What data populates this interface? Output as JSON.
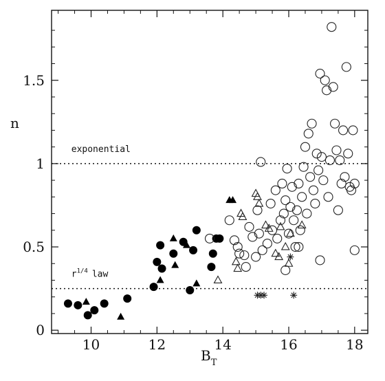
{
  "chart_data": {
    "type": "scatter",
    "title": "",
    "xlabel": "B",
    "xlabel_subscript": "T",
    "ylabel": "n",
    "xlim": [
      8.8,
      18.4
    ],
    "ylim": [
      -0.02,
      1.92
    ],
    "x_ticks": [
      10,
      12,
      14,
      16,
      18
    ],
    "x_tick_labels": [
      "10",
      "12",
      "14",
      "16",
      "18"
    ],
    "y_ticks": [
      0,
      0.5,
      1,
      1.5
    ],
    "y_tick_labels": [
      "0",
      "0.5",
      "1",
      "1.5"
    ],
    "grid": false,
    "legend": "none",
    "reference_lines": [
      {
        "y": 1.0,
        "label": "exponential",
        "label_x": 9.4,
        "label_y": 1.07
      },
      {
        "y": 0.25,
        "label_main": "r",
        "label_sup": "1/4",
        "label_rest": "law",
        "label_x": 9.4,
        "label_y": 0.32
      }
    ],
    "series": [
      {
        "marker": "filled-circle",
        "points": [
          [
            9.3,
            0.16
          ],
          [
            9.6,
            0.15
          ],
          [
            9.9,
            0.09
          ],
          [
            10.1,
            0.12
          ],
          [
            10.4,
            0.16
          ],
          [
            11.1,
            0.19
          ],
          [
            11.9,
            0.26
          ],
          [
            12.0,
            0.41
          ],
          [
            12.1,
            0.51
          ],
          [
            12.15,
            0.37
          ],
          [
            12.5,
            0.46
          ],
          [
            12.8,
            0.53
          ],
          [
            13.0,
            0.24
          ],
          [
            13.1,
            0.48
          ],
          [
            13.2,
            0.6
          ],
          [
            13.65,
            0.38
          ],
          [
            13.7,
            0.46
          ],
          [
            13.8,
            0.55
          ],
          [
            13.9,
            0.55
          ]
        ]
      },
      {
        "marker": "filled-triangle",
        "points": [
          [
            9.85,
            0.17
          ],
          [
            10.9,
            0.08
          ],
          [
            12.1,
            0.3
          ],
          [
            12.5,
            0.55
          ],
          [
            12.55,
            0.39
          ],
          [
            12.9,
            0.51
          ],
          [
            13.2,
            0.28
          ],
          [
            14.2,
            0.78
          ],
          [
            14.3,
            0.78
          ]
        ]
      },
      {
        "marker": "open-triangle",
        "points": [
          [
            13.85,
            0.3
          ],
          [
            14.4,
            0.41
          ],
          [
            14.45,
            0.37
          ],
          [
            14.55,
            0.7
          ],
          [
            14.6,
            0.68
          ],
          [
            15.0,
            0.82
          ],
          [
            15.05,
            0.8
          ],
          [
            15.1,
            0.76
          ],
          [
            15.3,
            0.63
          ],
          [
            15.4,
            0.61
          ],
          [
            15.6,
            0.46
          ],
          [
            15.7,
            0.44
          ],
          [
            15.75,
            0.62
          ],
          [
            15.9,
            0.5
          ],
          [
            16.0,
            0.4
          ],
          [
            16.05,
            0.58
          ],
          [
            16.4,
            0.63
          ]
        ]
      },
      {
        "marker": "open-circle",
        "points": [
          [
            13.6,
            0.55
          ],
          [
            14.2,
            0.66
          ],
          [
            14.35,
            0.54
          ],
          [
            14.45,
            0.5
          ],
          [
            14.5,
            0.46
          ],
          [
            14.65,
            0.45
          ],
          [
            14.7,
            0.38
          ],
          [
            14.8,
            0.62
          ],
          [
            14.9,
            0.56
          ],
          [
            15.0,
            0.44
          ],
          [
            15.05,
            0.72
          ],
          [
            15.1,
            0.58
          ],
          [
            15.15,
            1.01
          ],
          [
            15.2,
            0.48
          ],
          [
            15.35,
            0.52
          ],
          [
            15.45,
            0.76
          ],
          [
            15.5,
            0.6
          ],
          [
            15.6,
            0.84
          ],
          [
            15.65,
            0.55
          ],
          [
            15.75,
            0.66
          ],
          [
            15.8,
            0.88
          ],
          [
            15.85,
            0.7
          ],
          [
            15.9,
            0.78
          ],
          [
            15.95,
            0.97
          ],
          [
            16.0,
            0.58
          ],
          [
            16.05,
            0.74
          ],
          [
            16.1,
            0.86
          ],
          [
            16.15,
            0.66
          ],
          [
            16.2,
            0.5
          ],
          [
            16.25,
            0.72
          ],
          [
            16.3,
            0.88
          ],
          [
            16.35,
            0.6
          ],
          [
            16.4,
            0.8
          ],
          [
            16.45,
            0.98
          ],
          [
            16.5,
            1.1
          ],
          [
            16.55,
            0.7
          ],
          [
            16.6,
            1.18
          ],
          [
            16.65,
            0.92
          ],
          [
            16.7,
            1.24
          ],
          [
            16.75,
            0.84
          ],
          [
            16.8,
            0.76
          ],
          [
            16.85,
            1.06
          ],
          [
            16.9,
            0.96
          ],
          [
            16.95,
            1.54
          ],
          [
            17.0,
            1.04
          ],
          [
            17.05,
            0.9
          ],
          [
            17.1,
            1.5
          ],
          [
            17.15,
            1.44
          ],
          [
            17.2,
            0.8
          ],
          [
            17.25,
            1.02
          ],
          [
            17.3,
            1.82
          ],
          [
            17.35,
            1.46
          ],
          [
            17.4,
            1.24
          ],
          [
            17.45,
            1.08
          ],
          [
            17.5,
            0.72
          ],
          [
            17.55,
            1.02
          ],
          [
            17.6,
            0.88
          ],
          [
            17.65,
            1.2
          ],
          [
            17.7,
            0.92
          ],
          [
            17.75,
            1.58
          ],
          [
            17.8,
            1.06
          ],
          [
            17.85,
            0.86
          ],
          [
            17.9,
            0.84
          ],
          [
            17.95,
            1.2
          ],
          [
            18.0,
            0.88
          ],
          [
            18.0,
            0.48
          ],
          [
            16.95,
            0.42
          ],
          [
            16.3,
            0.5
          ],
          [
            15.9,
            0.36
          ]
        ]
      },
      {
        "marker": "asterisk",
        "points": [
          [
            15.05,
            0.21
          ],
          [
            15.15,
            0.21
          ],
          [
            15.25,
            0.21
          ],
          [
            16.05,
            0.44
          ],
          [
            16.15,
            0.21
          ]
        ]
      }
    ]
  }
}
